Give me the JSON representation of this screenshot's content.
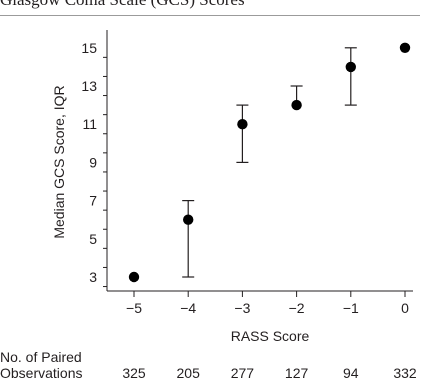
{
  "header": {
    "title": "Glasgow Coma Scale (GCS) Scores"
  },
  "chart_data": {
    "type": "scatter",
    "xlabel": "RASS Score",
    "ylabel": "Median GCS Score, IQR",
    "categories": [
      "−5",
      "−4",
      "−3",
      "−2",
      "−1",
      "0"
    ],
    "x": [
      -5,
      -4,
      -3,
      -2,
      -1,
      0
    ],
    "median": [
      3,
      6,
      11,
      12,
      14,
      15
    ],
    "iqr_low": [
      3,
      3,
      9,
      12,
      12,
      15
    ],
    "iqr_high": [
      3,
      7,
      12,
      13,
      15,
      15
    ],
    "ylim": [
      2,
      15.5
    ],
    "yticks": [
      3,
      5,
      7,
      9,
      11,
      13,
      15
    ],
    "grid": false,
    "point_color": "#000000",
    "axis_color": "#231f20"
  },
  "observations": {
    "title_line1": "No. of Paired",
    "title_line2": "Observations",
    "values": [
      "325",
      "205",
      "277",
      "127",
      "94",
      "332"
    ]
  }
}
